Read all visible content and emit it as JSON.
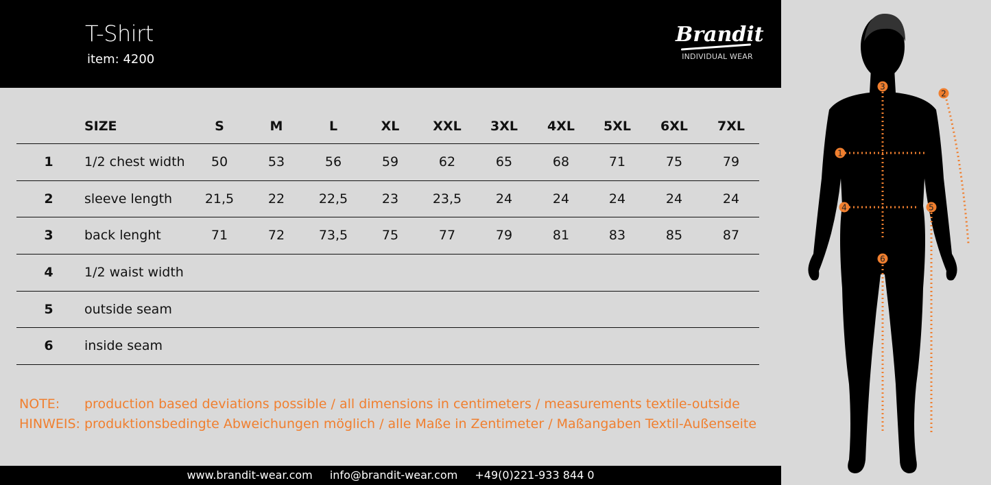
{
  "header": {
    "title": "T-Shirt",
    "item": "item: 4200",
    "logo_text": "Brandit",
    "logo_sub": "INDIVIDUAL WEAR"
  },
  "table": {
    "size_label": "SIZE",
    "sizes": [
      "S",
      "M",
      "L",
      "XL",
      "XXL",
      "3XL",
      "4XL",
      "5XL",
      "6XL",
      "7XL"
    ],
    "rows": [
      {
        "num": "1",
        "label": "1/2 chest width",
        "values": [
          "50",
          "53",
          "56",
          "59",
          "62",
          "65",
          "68",
          "71",
          "75",
          "79"
        ]
      },
      {
        "num": "2",
        "label": "sleeve length",
        "values": [
          "21,5",
          "22",
          "22,5",
          "23",
          "23,5",
          "24",
          "24",
          "24",
          "24",
          "24"
        ]
      },
      {
        "num": "3",
        "label": "back lenght",
        "values": [
          "71",
          "72",
          "73,5",
          "75",
          "77",
          "79",
          "81",
          "83",
          "85",
          "87"
        ]
      },
      {
        "num": "4",
        "label": "1/2 waist width",
        "values": []
      },
      {
        "num": "5",
        "label": "outside seam",
        "values": []
      },
      {
        "num": "6",
        "label": "inside seam",
        "values": []
      }
    ]
  },
  "notes": [
    {
      "key": "NOTE:",
      "text": "production based deviations possible / all dimensions in centimeters / measurements textile-outside"
    },
    {
      "key": "HINWEIS:",
      "text": "produktionsbedingte Abweichungen möglich / alle Maße in Zentimeter / Maßangaben Textil-Außenseite"
    }
  ],
  "footer": {
    "website": "www.brandit-wear.com",
    "email": "info@brandit-wear.com",
    "phone": "+49(0)221-933 844 0"
  },
  "figure": {
    "markers": [
      "1",
      "2",
      "3",
      "4",
      "5",
      "6"
    ]
  },
  "colors": {
    "accent": "#f07f2f",
    "background": "#d9d9d9",
    "header": "#000000"
  }
}
